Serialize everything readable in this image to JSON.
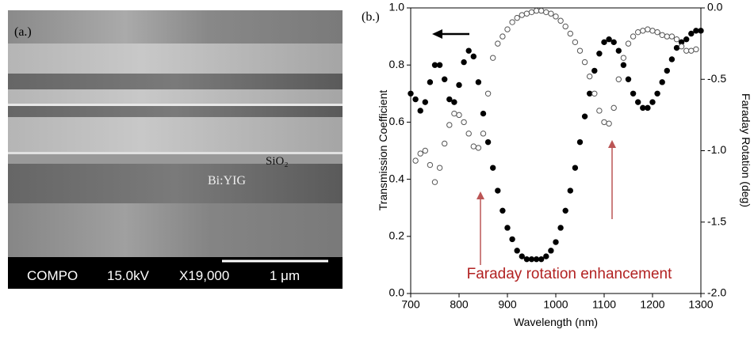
{
  "panel_a": {
    "label": "(a.)",
    "layer_top": "SiO₂",
    "layer_bottom": "Bi:YIG",
    "scale_bar": {
      "mode": "COMPO",
      "voltage": "15.0kV",
      "magnification": "X19,000",
      "length": "1 μm"
    }
  },
  "chart_data": {
    "type": "scatter",
    "panel_label": "(b.)",
    "xlabel": "Wavelength (nm)",
    "ylabel": "Transmission Coefficient",
    "y2label": "Faraday Rotation (deg)",
    "annotation": "Faraday rotation enhancement",
    "xlim": [
      700,
      1300
    ],
    "xticks": [
      700,
      800,
      900,
      1000,
      1100,
      1200,
      1300
    ],
    "ylim": [
      0,
      1
    ],
    "yticks": [
      {
        "value": 0,
        "label": "0.0"
      },
      0.2,
      0.4,
      0.6,
      0.8,
      {
        "value": 1,
        "label": "1.0"
      }
    ],
    "y2lim": [
      -2,
      0
    ],
    "y2ticks": [
      {
        "value": -2,
        "label": "-2.0"
      },
      -1.5,
      {
        "value": -1,
        "label": "-1.0"
      },
      -0.5,
      {
        "value": 0,
        "label": "0.0"
      }
    ],
    "series": [
      {
        "name": "Transmission",
        "color": "#000000",
        "filled": true,
        "x": [
          700,
          710,
          720,
          730,
          740,
          750,
          760,
          770,
          780,
          790,
          800,
          810,
          820,
          830,
          840,
          850,
          860,
          870,
          880,
          890,
          900,
          910,
          920,
          930,
          940,
          950,
          960,
          970,
          980,
          990,
          1000,
          1010,
          1020,
          1030,
          1040,
          1050,
          1060,
          1070,
          1080,
          1090,
          1100,
          1110,
          1120,
          1130,
          1140,
          1150,
          1160,
          1170,
          1180,
          1190,
          1200,
          1210,
          1220,
          1230,
          1240,
          1250,
          1260,
          1270,
          1280,
          1290,
          1300
        ],
        "values": [
          0.7,
          0.68,
          0.64,
          0.67,
          0.74,
          0.8,
          0.8,
          0.75,
          0.68,
          0.67,
          0.73,
          0.81,
          0.85,
          0.83,
          0.74,
          0.63,
          0.53,
          0.44,
          0.36,
          0.29,
          0.23,
          0.19,
          0.15,
          0.13,
          0.12,
          0.12,
          0.12,
          0.12,
          0.13,
          0.15,
          0.18,
          0.23,
          0.29,
          0.36,
          0.44,
          0.53,
          0.62,
          0.7,
          0.78,
          0.84,
          0.88,
          0.89,
          0.88,
          0.85,
          0.8,
          0.75,
          0.7,
          0.67,
          0.65,
          0.65,
          0.67,
          0.7,
          0.74,
          0.78,
          0.82,
          0.86,
          0.88,
          0.89,
          0.91,
          0.92,
          0.92
        ]
      },
      {
        "name": "Faraday Rotation",
        "color": "#555555",
        "filled": false,
        "axis": "y2",
        "x": [
          710,
          720,
          730,
          740,
          750,
          760,
          770,
          780,
          790,
          800,
          810,
          820,
          830,
          840,
          850,
          860,
          870,
          880,
          890,
          900,
          910,
          920,
          930,
          940,
          950,
          960,
          970,
          980,
          990,
          1000,
          1010,
          1020,
          1030,
          1040,
          1050,
          1060,
          1070,
          1080,
          1090,
          1100,
          1110,
          1120,
          1130,
          1140,
          1150,
          1160,
          1170,
          1180,
          1190,
          1200,
          1210,
          1220,
          1230,
          1240,
          1250,
          1260,
          1270,
          1280,
          1290
        ],
        "values": [
          -1.07,
          -1.02,
          -1.0,
          -1.1,
          -1.22,
          -1.12,
          -0.95,
          -0.82,
          -0.74,
          -0.75,
          -0.8,
          -0.88,
          -0.97,
          -0.98,
          -0.88,
          -0.6,
          -0.35,
          -0.25,
          -0.2,
          -0.15,
          -0.1,
          -0.07,
          -0.05,
          -0.04,
          -0.03,
          -0.02,
          -0.02,
          -0.03,
          -0.04,
          -0.06,
          -0.09,
          -0.13,
          -0.18,
          -0.24,
          -0.3,
          -0.38,
          -0.48,
          -0.6,
          -0.72,
          -0.8,
          -0.81,
          -0.7,
          -0.5,
          -0.35,
          -0.25,
          -0.2,
          -0.17,
          -0.16,
          -0.15,
          -0.16,
          -0.17,
          -0.19,
          -0.2,
          -0.2,
          -0.22,
          -0.27,
          -0.3,
          -0.3,
          -0.29
        ]
      }
    ]
  }
}
